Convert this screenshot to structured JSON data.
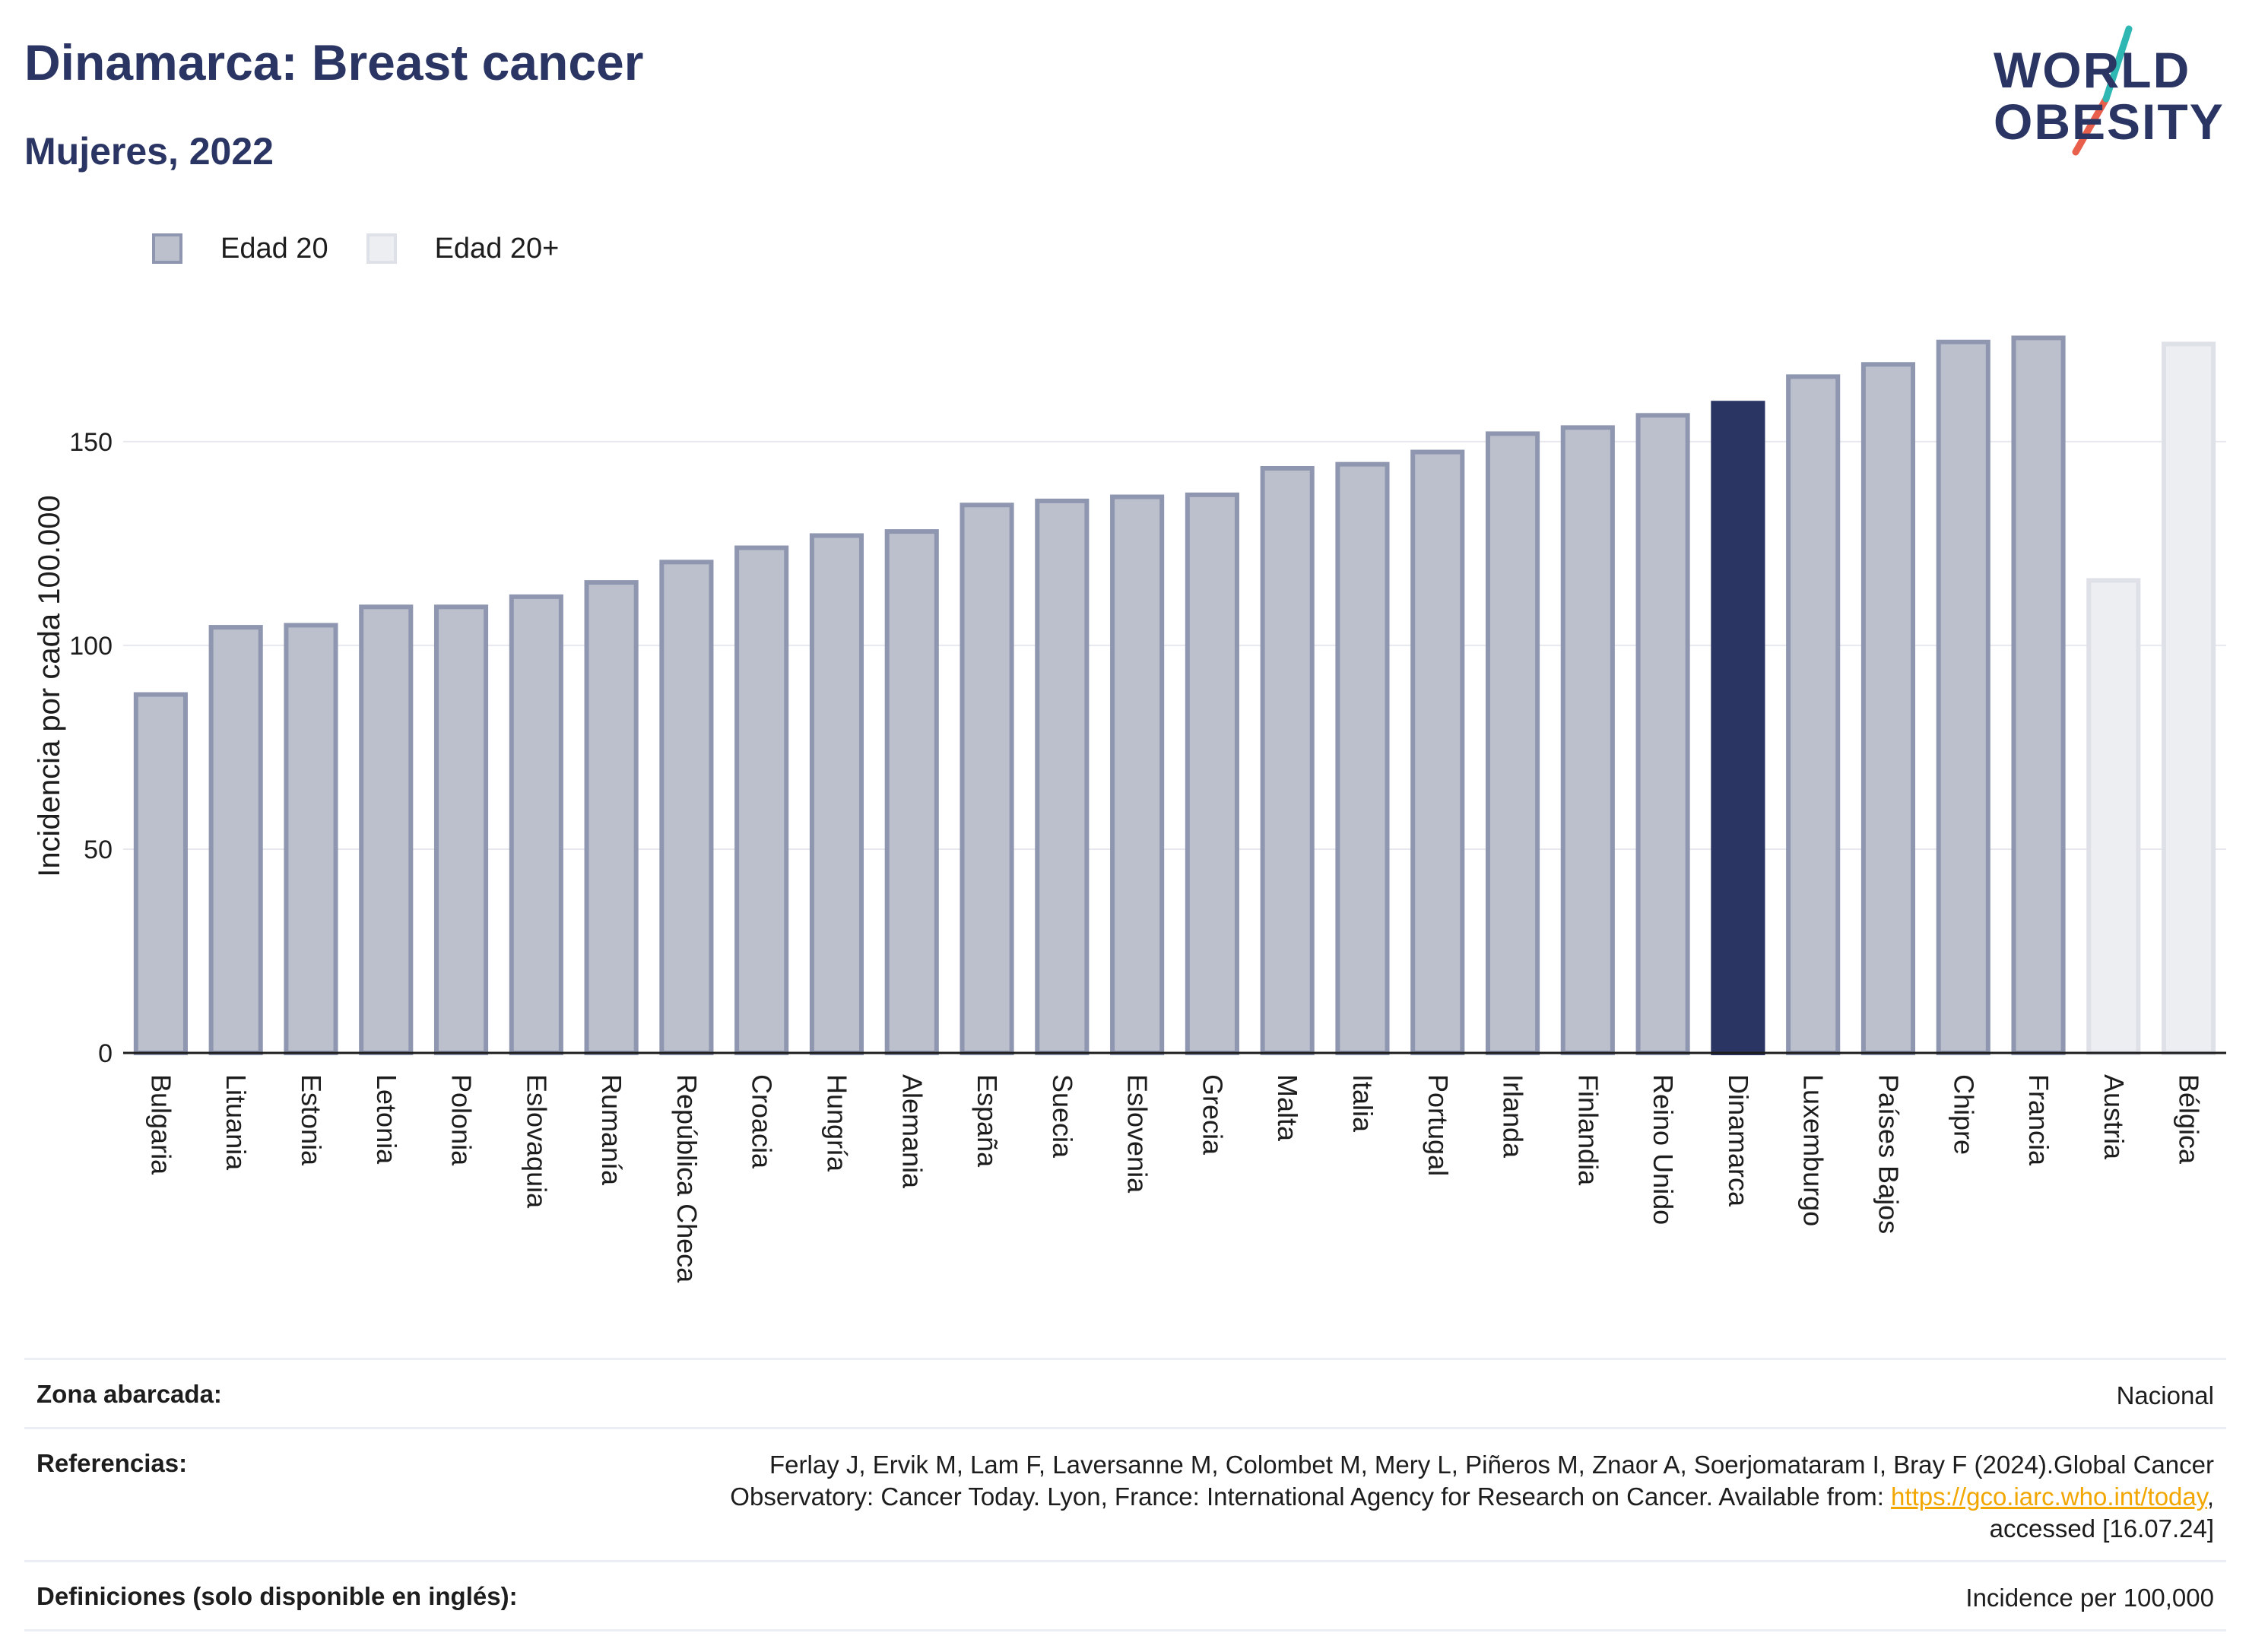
{
  "header": {
    "title": "Dinamarca: Breast cancer",
    "subtitle": "Mujeres, 2022"
  },
  "logo": {
    "line1": "WORLD",
    "line2": "OBESITY",
    "colors": {
      "text": "#2a3563",
      "slash_teal": "#2fb8b3",
      "slash_red": "#e8604c"
    }
  },
  "legend": {
    "items": [
      {
        "label": "Edad 20",
        "color": "#bcc0cd",
        "border": "#8f96b0"
      },
      {
        "label": "Edad 20+",
        "color": "#eceef2",
        "border": "#dfe1e8"
      }
    ]
  },
  "chart_data": {
    "type": "bar",
    "ylabel": "Incidencia por cada 100.000",
    "xlabel": "",
    "ylim": [
      0,
      180
    ],
    "yticks": [
      0,
      50,
      100,
      150
    ],
    "grid": true,
    "highlight": "Dinamarca",
    "colors": {
      "bar": "#bcc0cd",
      "bar_border": "#8f96b0",
      "highlight": "#2a3563",
      "secondary": "#eceef2",
      "secondary_border": "#dfe1e8"
    },
    "categories": [
      "Bulgaria",
      "Lituania",
      "Estonia",
      "Letonia",
      "Polonia",
      "Eslovaquia",
      "Rumanía",
      "República Checa",
      "Croacia",
      "Hungría",
      "Alemania",
      "España",
      "Suecia",
      "Eslovenia",
      "Grecia",
      "Malta",
      "Italia",
      "Portugal",
      "Irlanda",
      "Finlandia",
      "Reino Unido",
      "Dinamarca",
      "Luxemburgo",
      "Países Bajos",
      "Chipre",
      "Francia",
      "Austria",
      "Bélgica"
    ],
    "series_index": [
      0,
      0,
      0,
      0,
      0,
      0,
      0,
      0,
      0,
      0,
      0,
      0,
      0,
      0,
      0,
      0,
      0,
      0,
      0,
      0,
      0,
      0,
      0,
      0,
      0,
      0,
      1,
      1
    ],
    "series_names": [
      "Edad 20",
      "Edad 20+"
    ],
    "values": [
      88.5,
      105,
      105.5,
      110,
      110,
      112.5,
      116,
      121,
      124.5,
      127.5,
      128.5,
      135,
      136,
      137,
      137.5,
      144,
      145,
      148,
      152.5,
      154,
      157,
      160,
      166.5,
      169.5,
      175,
      176,
      116.5,
      174.5
    ]
  },
  "footer": {
    "rows": [
      {
        "label": "Zona abarcada:",
        "value": "Nacional"
      },
      {
        "label": "Referencias:",
        "value_line1": "Ferlay J, Ervik M, Lam F, Laversanne M, Colombet M, Mery L, Piñeros M, Znaor A, Soerjomataram I, Bray F (2024).Global Cancer",
        "value_line2_pre": "Observatory: Cancer Today. Lyon, France: International Agency for Research on Cancer. Available from: ",
        "link": "https://gco.iarc.who.int/today",
        "value_line2_post": ",",
        "value_line3": "accessed [16.07.24]"
      },
      {
        "label": "Definiciones (solo disponible en inglés):",
        "value": "Incidence per 100,000"
      }
    ]
  }
}
